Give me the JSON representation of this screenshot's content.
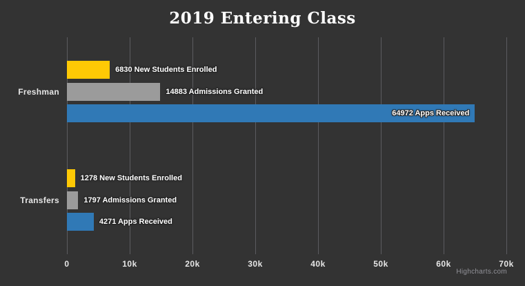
{
  "credit": "Highcharts.com",
  "colors": {
    "background": "#333333",
    "gridline": "#5c5c60",
    "title_text": "#ffffff",
    "axis_label_text": "#e6e6e6",
    "data_label_text": "#ffffff"
  },
  "chart_data": {
    "type": "bar",
    "orientation": "horizontal",
    "title": "2019 Entering Class",
    "categories": [
      "Freshman",
      "Transfers"
    ],
    "series": [
      {
        "name": "New Students Enrolled",
        "color": "#fec905",
        "values": [
          6830,
          1278
        ]
      },
      {
        "name": "Admissions Granted",
        "color": "#9b9b9b",
        "values": [
          14883,
          1797
        ]
      },
      {
        "name": "Apps Received",
        "color": "#3079b6",
        "values": [
          64972,
          4271
        ]
      }
    ],
    "data_labels": [
      [
        "6830 New Students Enrolled",
        "14883 Admissions Granted",
        "64972 Apps Received"
      ],
      [
        "1278 New Students Enrolled",
        "1797 Admissions Granted",
        "4271 Apps Received"
      ]
    ],
    "xlim": [
      0,
      70000
    ],
    "x_tick_values": [
      0,
      10000,
      20000,
      30000,
      40000,
      50000,
      60000,
      70000
    ],
    "x_tick_labels": [
      "0",
      "10k",
      "20k",
      "30k",
      "40k",
      "50k",
      "60k",
      "70k"
    ],
    "xlabel": "",
    "ylabel": "",
    "grid": true,
    "legend": false
  }
}
